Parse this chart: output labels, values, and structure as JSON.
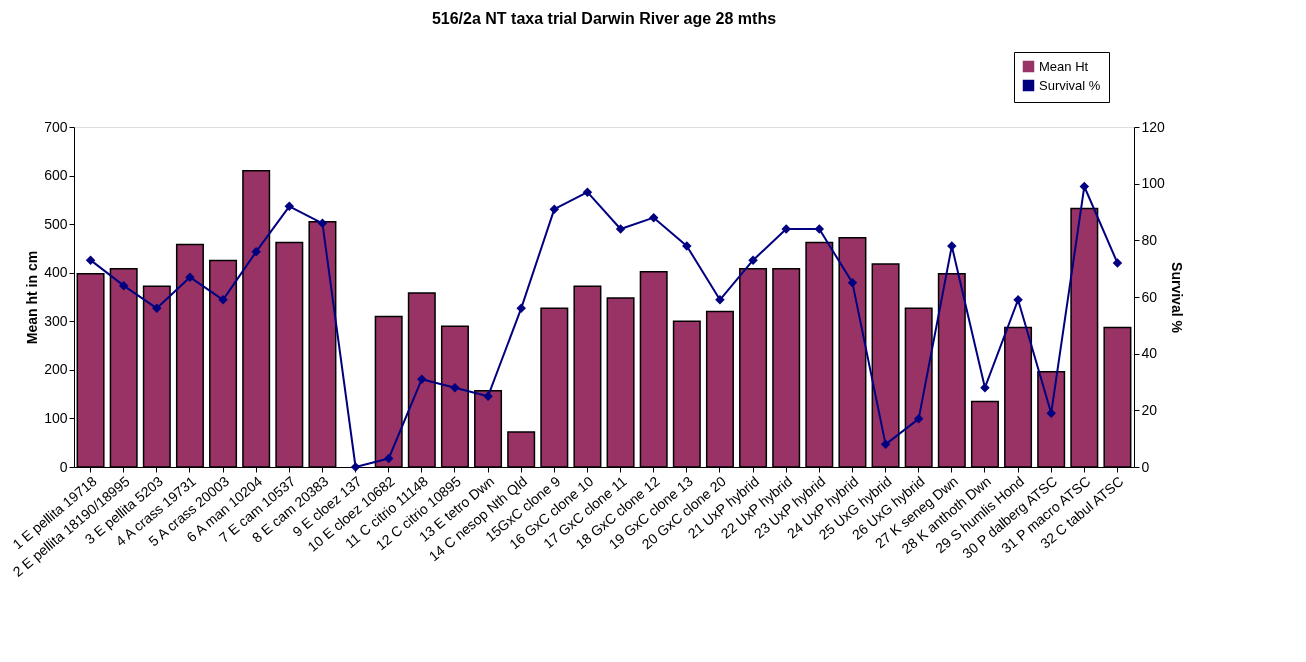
{
  "chart_data": {
    "type": "bar",
    "title": "516/2a NT taxa trial Darwin River age 28 mths",
    "categories": [
      "1 E pellita 19718",
      "2 E pellita 18190/18995",
      "3 E pellita 5203",
      "4 A crass 19731",
      "5 A crass 20003",
      "6 A man 10204",
      "7 E cam 10537",
      "8 E cam 20383",
      "9 E cloez 137",
      "10 E cloez 10682",
      "11 C citrio 11148",
      "12 C citrio 10895",
      "13 E tetro Dwn",
      "14 C nesop Nth Qld",
      "15GxC clone 9",
      "16 GxC clone 10",
      "17 GxC clone 11",
      "18 GxC clone 12",
      "19 GxC clone 13",
      "20 GxC clone 20",
      "21 UxP hybrid",
      "22 UxP hybrid",
      "23 UxP hybrid",
      "24 UxP hybrid",
      "25 UxG hybrid",
      "26 UxG hybrid",
      "27 K seneg Dwn",
      "28 K anthoth Dwn",
      "29 S humlis Hond",
      "30 P dalberg ATSC",
      "31 P macro ATSC",
      "32 C tabul ATSC"
    ],
    "series": [
      {
        "name": "Mean Ht",
        "color": "#993366",
        "values": [
          398,
          408,
          372,
          458,
          425,
          610,
          462,
          505,
          null,
          310,
          358,
          290,
          157,
          72,
          327,
          372,
          348,
          402,
          300,
          320,
          408,
          408,
          462,
          472,
          418,
          327,
          398,
          135,
          287,
          196,
          532,
          287
        ]
      },
      {
        "name": "Survival %",
        "type": "line",
        "axis": "y2",
        "color": "#000080",
        "marker": "diamond",
        "values": [
          73,
          64,
          56,
          67,
          59,
          76,
          92,
          86,
          0,
          3,
          31,
          28,
          25,
          56,
          91,
          97,
          84,
          88,
          78,
          59,
          73,
          84,
          84,
          65,
          8,
          17,
          78,
          28,
          59,
          19,
          99,
          72
        ]
      }
    ],
    "ylabel": "Mean ht in cm",
    "y2label": "Survival %",
    "ylim": [
      0,
      700
    ],
    "yticks": [
      0,
      100,
      200,
      300,
      400,
      500,
      600,
      700
    ],
    "y2lim": [
      0,
      120
    ],
    "y2ticks": [
      0,
      20,
      40,
      60,
      80,
      100,
      120
    ],
    "grid": false,
    "legend": "top right"
  }
}
